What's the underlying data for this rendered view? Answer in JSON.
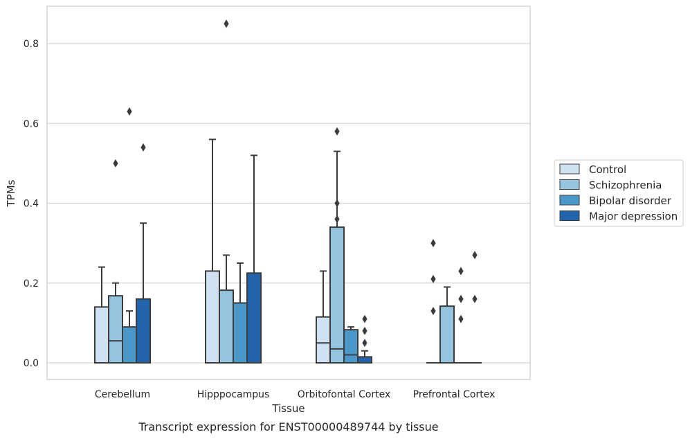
{
  "chart_data": {
    "type": "box",
    "title": "",
    "caption": "Transcript expression for ENST00000489744 by tissue",
    "xlabel": "Tissue",
    "ylabel": "TPMs",
    "ylim": [
      -0.04,
      0.89
    ],
    "yticks": [
      0.0,
      0.2,
      0.4,
      0.6,
      0.8
    ],
    "ytick_labels": [
      "0.0",
      "0.2",
      "0.4",
      "0.6",
      "0.8"
    ],
    "grid": "horizontal",
    "legend_position": "right",
    "categories": [
      "Cerebellum",
      "Hipppocampus",
      "Orbitofontal Cortex",
      "Prefrontal Cortex"
    ],
    "series": [
      {
        "name": "Control",
        "color": "#d0e1f2",
        "boxes": [
          {
            "min": 0.0,
            "q1": 0.0,
            "median": 0.0,
            "q3": 0.14,
            "max": 0.24,
            "outliers": []
          },
          {
            "min": 0.0,
            "q1": 0.0,
            "median": 0.0,
            "q3": 0.23,
            "max": 0.56,
            "outliers": []
          },
          {
            "min": 0.0,
            "q1": 0.0,
            "median": 0.05,
            "q3": 0.115,
            "max": 0.23,
            "outliers": []
          },
          {
            "min": 0.0,
            "q1": 0.0,
            "median": 0.0,
            "q3": 0.0,
            "max": 0.0,
            "outliers": [
              0.13,
              0.21,
              0.3
            ]
          }
        ]
      },
      {
        "name": "Schizophrenia",
        "color": "#94c4df",
        "boxes": [
          {
            "min": 0.0,
            "q1": 0.0,
            "median": 0.055,
            "q3": 0.168,
            "max": 0.2,
            "outliers": [
              0.5
            ]
          },
          {
            "min": 0.0,
            "q1": 0.0,
            "median": 0.0,
            "q3": 0.182,
            "max": 0.27,
            "outliers": [
              0.85
            ]
          },
          {
            "min": 0.0,
            "q1": 0.0,
            "median": 0.035,
            "q3": 0.34,
            "max": 0.53,
            "outliers": [
              0.36,
              0.4,
              0.58
            ]
          },
          {
            "min": 0.0,
            "q1": 0.0,
            "median": 0.0,
            "q3": 0.142,
            "max": 0.19,
            "outliers": []
          }
        ]
      },
      {
        "name": "Bipolar disorder",
        "color": "#4a98c9",
        "boxes": [
          {
            "min": 0.0,
            "q1": 0.0,
            "median": 0.0,
            "q3": 0.09,
            "max": 0.13,
            "outliers": [
              0.63
            ]
          },
          {
            "min": 0.0,
            "q1": 0.0,
            "median": 0.0,
            "q3": 0.15,
            "max": 0.25,
            "outliers": []
          },
          {
            "min": 0.0,
            "q1": 0.0,
            "median": 0.02,
            "q3": 0.083,
            "max": 0.09,
            "outliers": []
          },
          {
            "min": 0.0,
            "q1": 0.0,
            "median": 0.0,
            "q3": 0.0,
            "max": 0.0,
            "outliers": [
              0.11,
              0.16,
              0.23
            ]
          }
        ]
      },
      {
        "name": "Major depression",
        "color": "#2164ab",
        "boxes": [
          {
            "min": 0.0,
            "q1": 0.0,
            "median": 0.0,
            "q3": 0.16,
            "max": 0.35,
            "outliers": [
              0.54
            ]
          },
          {
            "min": 0.0,
            "q1": 0.0,
            "median": 0.0,
            "q3": 0.225,
            "max": 0.52,
            "outliers": []
          },
          {
            "min": 0.0,
            "q1": 0.0,
            "median": 0.0,
            "q3": 0.015,
            "max": 0.03,
            "outliers": [
              0.05,
              0.08,
              0.11
            ]
          },
          {
            "min": 0.0,
            "q1": 0.0,
            "median": 0.0,
            "q3": 0.0,
            "max": 0.0,
            "outliers": [
              0.16,
              0.27
            ]
          }
        ]
      }
    ]
  }
}
